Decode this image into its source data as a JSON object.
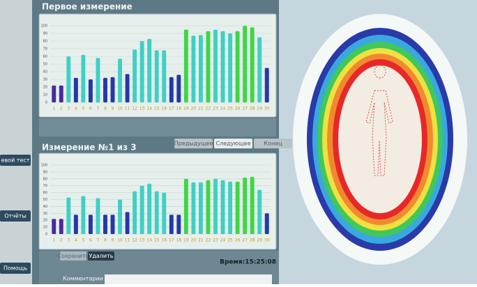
{
  "sidebar": {
    "buttons": [
      "евой тест",
      "Отчёты",
      "Помощь"
    ]
  },
  "panels": [
    {
      "title": "Первое измерение",
      "chart": {
        "type": "bar",
        "categories": [
          "1",
          "2",
          "3",
          "4",
          "5",
          "6",
          "7",
          "8",
          "9",
          "10",
          "11",
          "12",
          "13",
          "14",
          "15",
          "16",
          "17",
          "18",
          "19",
          "20",
          "21",
          "22",
          "23",
          "24",
          "25",
          "26",
          "27",
          "28",
          "29",
          "30"
        ],
        "values": [
          22,
          22,
          60,
          32,
          62,
          30,
          58,
          32,
          33,
          57,
          37,
          69,
          80,
          83,
          68,
          68,
          33,
          36,
          95,
          87,
          88,
          93,
          95,
          93,
          90,
          93,
          100,
          98,
          85,
          45
        ],
        "colors": [
          "#4a2a9a",
          "#4a2a9a",
          "#3fd0c4",
          "#2438a8",
          "#3fd0c4",
          "#2438a8",
          "#3fd0c4",
          "#2438a8",
          "#2438a8",
          "#3fd0c4",
          "#2438a8",
          "#3fd0c4",
          "#3fd0c4",
          "#3fd0c4",
          "#3fd0c4",
          "#3fd0c4",
          "#2438a8",
          "#2438a8",
          "#3ed646",
          "#3fd0c4",
          "#3fd0c4",
          "#3ed646",
          "#3fd0c4",
          "#3fd0c4",
          "#3fd0c4",
          "#3ed646",
          "#3ed646",
          "#3ed646",
          "#3fd0c4",
          "#2438a8"
        ],
        "ylim": [
          0,
          100
        ],
        "yticks": [
          0,
          10,
          20,
          30,
          40,
          50,
          60,
          70,
          80,
          90,
          100
        ],
        "grid": true
      }
    },
    {
      "title": "Измерение №1 из 3",
      "buttons": [
        "Предыдущее",
        "Следующее",
        "Конец"
      ],
      "chart": {
        "type": "bar",
        "categories": [
          "1",
          "2",
          "3",
          "4",
          "5",
          "6",
          "7",
          "8",
          "9",
          "10",
          "11",
          "12",
          "13",
          "14",
          "15",
          "16",
          "17",
          "18",
          "19",
          "20",
          "21",
          "22",
          "23",
          "24",
          "25",
          "26",
          "27",
          "28",
          "29",
          "30"
        ],
        "values": [
          22,
          22,
          53,
          28,
          55,
          28,
          52,
          28,
          28,
          50,
          32,
          62,
          70,
          73,
          62,
          60,
          28,
          28,
          80,
          75,
          75,
          78,
          80,
          78,
          76,
          76,
          82,
          83,
          64,
          30
        ],
        "colors": [
          "#4a2a9a",
          "#4a2a9a",
          "#3fd0c4",
          "#2438a8",
          "#3fd0c4",
          "#2438a8",
          "#3fd0c4",
          "#2438a8",
          "#2438a8",
          "#3fd0c4",
          "#2438a8",
          "#3fd0c4",
          "#3fd0c4",
          "#3fd0c4",
          "#3fd0c4",
          "#3fd0c4",
          "#2438a8",
          "#2438a8",
          "#3ed646",
          "#3fd0c4",
          "#3fd0c4",
          "#3ed646",
          "#3fd0c4",
          "#3fd0c4",
          "#3fd0c4",
          "#3ed646",
          "#3ed646",
          "#3ed646",
          "#3fd0c4",
          "#2438a8"
        ],
        "ylim": [
          0,
          100
        ],
        "yticks": [
          0,
          10,
          20,
          30,
          40,
          50,
          60,
          70,
          80,
          90,
          100
        ],
        "grid": true
      }
    }
  ],
  "footer": {
    "buttons": [
      "Сохранить",
      "Удалить"
    ],
    "time": "Время:15:25:08",
    "comment": "Комментарии"
  }
}
